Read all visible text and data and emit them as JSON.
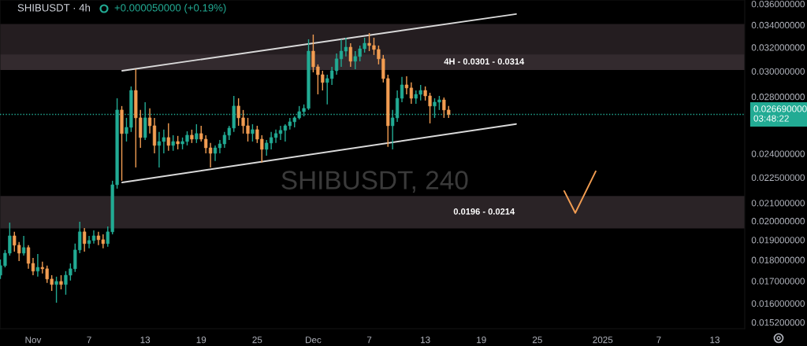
{
  "chart_data": {
    "type": "candlestick",
    "title": "SHIBUSDT · 4h",
    "subtitle": "+0.000050000 (+0.19%)",
    "x": [
      "2024-10-28T12:00",
      "2024-10-29T00:00",
      "2024-10-29T12:00",
      "2024-10-30T00:00",
      "2024-10-30T12:00",
      "2024-10-31T00:00",
      "2024-10-31T12:00",
      "2024-11-01T00:00",
      "2024-11-01T12:00",
      "2024-11-02T00:00",
      "2024-11-02T12:00",
      "2024-11-03T00:00",
      "2024-11-03T12:00",
      "2024-11-04T00:00",
      "2024-11-04T12:00",
      "2024-11-05T00:00",
      "2024-11-05T12:00",
      "2024-11-06T00:00",
      "2024-11-06T12:00",
      "2024-11-07T00:00",
      "2024-11-07T12:00",
      "2024-11-08T00:00",
      "2024-11-08T12:00",
      "2024-11-09T00:00",
      "2024-11-09T12:00",
      "2024-11-10T00:00",
      "2024-11-10T12:00",
      "2024-11-11T00:00",
      "2024-11-11T12:00",
      "2024-11-12T00:00",
      "2024-11-12T12:00",
      "2024-11-13T00:00",
      "2024-11-13T12:00",
      "2024-11-14T00:00",
      "2024-11-14T12:00",
      "2024-11-15T00:00",
      "2024-11-15T12:00",
      "2024-11-16T00:00",
      "2024-11-16T12:00",
      "2024-11-17T00:00",
      "2024-11-17T12:00",
      "2024-11-18T00:00",
      "2024-11-18T12:00",
      "2024-11-19T00:00",
      "2024-11-19T12:00",
      "2024-11-20T00:00",
      "2024-11-20T12:00",
      "2024-11-21T00:00",
      "2024-11-21T12:00",
      "2024-11-22T00:00",
      "2024-11-22T12:00",
      "2024-11-23T00:00",
      "2024-11-23T12:00",
      "2024-11-24T00:00",
      "2024-11-24T12:00",
      "2024-11-25T00:00",
      "2024-11-25T12:00",
      "2024-11-26T00:00",
      "2024-11-26T12:00",
      "2024-11-27T00:00",
      "2024-11-27T12:00",
      "2024-11-28T00:00",
      "2024-11-28T12:00",
      "2024-11-29T00:00",
      "2024-11-29T12:00",
      "2024-11-30T00:00",
      "2024-11-30T12:00",
      "2024-12-01T00:00",
      "2024-12-01T12:00",
      "2024-12-02T00:00",
      "2024-12-02T12:00",
      "2024-12-03T00:00",
      "2024-12-03T12:00",
      "2024-12-04T00:00",
      "2024-12-04T12:00",
      "2024-12-05T00:00",
      "2024-12-05T12:00",
      "2024-12-06T00:00",
      "2024-12-06T12:00",
      "2024-12-07T00:00",
      "2024-12-07T12:00",
      "2024-12-08T00:00",
      "2024-12-08T12:00",
      "2024-12-09T00:00",
      "2024-12-09T12:00",
      "2024-12-10T00:00",
      "2024-12-10T12:00",
      "2024-12-11T00:00",
      "2024-12-11T12:00",
      "2024-12-12T00:00",
      "2024-12-12T12:00",
      "2024-12-13T00:00",
      "2024-12-13T12:00",
      "2024-12-14T00:00",
      "2024-12-14T12:00",
      "2024-12-15T00:00",
      "2024-12-15T12:00"
    ],
    "ohlc": [
      [
        0.01727,
        0.01802,
        0.01709,
        0.01772
      ],
      [
        0.01772,
        0.01849,
        0.01764,
        0.01833
      ],
      [
        0.01833,
        0.01991,
        0.01821,
        0.01921
      ],
      [
        0.01921,
        0.01942,
        0.01841,
        0.01873
      ],
      [
        0.01873,
        0.01889,
        0.01794,
        0.01833
      ],
      [
        0.01833,
        0.01921,
        0.01821,
        0.01861
      ],
      [
        0.01861,
        0.01873,
        0.01757,
        0.01783
      ],
      [
        0.01783,
        0.0181,
        0.01727,
        0.01746
      ],
      [
        0.01746,
        0.01829,
        0.0172,
        0.01764
      ],
      [
        0.01764,
        0.01791,
        0.01735,
        0.01757
      ],
      [
        0.01757,
        0.01772,
        0.01691,
        0.01709
      ],
      [
        0.01709,
        0.01727,
        0.01655,
        0.01684
      ],
      [
        0.01684,
        0.0172,
        0.01603,
        0.01698
      ],
      [
        0.01698,
        0.01727,
        0.01662,
        0.01684
      ],
      [
        0.01684,
        0.01746,
        0.01638,
        0.01727
      ],
      [
        0.01727,
        0.01783,
        0.01702,
        0.01757
      ],
      [
        0.01757,
        0.01881,
        0.01742,
        0.01849
      ],
      [
        0.01849,
        0.01996,
        0.01833,
        0.01942
      ],
      [
        0.01942,
        0.01962,
        0.01841,
        0.01881
      ],
      [
        0.01881,
        0.01921,
        0.01857,
        0.01897
      ],
      [
        0.01897,
        0.0195,
        0.01881,
        0.01921
      ],
      [
        0.01921,
        0.01942,
        0.01873,
        0.01901
      ],
      [
        0.01901,
        0.01929,
        0.01857,
        0.01881
      ],
      [
        0.01881,
        0.0197,
        0.01865,
        0.01942
      ],
      [
        0.01942,
        0.0223,
        0.01929,
        0.02206
      ],
      [
        0.02206,
        0.02788,
        0.02183,
        0.02701
      ],
      [
        0.02701,
        0.0273,
        0.0223,
        0.02534
      ],
      [
        0.02534,
        0.02644,
        0.0248,
        0.02577
      ],
      [
        0.02577,
        0.02879,
        0.02545,
        0.02848
      ],
      [
        0.02848,
        0.03017,
        0.02312,
        0.02644
      ],
      [
        0.02644,
        0.02701,
        0.02438,
        0.02507
      ],
      [
        0.02507,
        0.02759,
        0.02491,
        0.02644
      ],
      [
        0.02644,
        0.02713,
        0.02534,
        0.02588
      ],
      [
        0.02588,
        0.02644,
        0.02402,
        0.02454
      ],
      [
        0.02454,
        0.02545,
        0.02312,
        0.0248
      ],
      [
        0.0248,
        0.02561,
        0.02402,
        0.02507
      ],
      [
        0.02507,
        0.02605,
        0.02418,
        0.02454
      ],
      [
        0.02454,
        0.02523,
        0.02418,
        0.0248
      ],
      [
        0.0248,
        0.02518,
        0.02428,
        0.02464
      ],
      [
        0.02464,
        0.02507,
        0.02428,
        0.0248
      ],
      [
        0.0248,
        0.0255,
        0.02454,
        0.02523
      ],
      [
        0.02523,
        0.02561,
        0.0247,
        0.02496
      ],
      [
        0.02496,
        0.02599,
        0.0247,
        0.02534
      ],
      [
        0.02534,
        0.02588,
        0.0248,
        0.02496
      ],
      [
        0.02496,
        0.02523,
        0.02402,
        0.02438
      ],
      [
        0.02438,
        0.0247,
        0.02312,
        0.02402
      ],
      [
        0.02402,
        0.02454,
        0.02352,
        0.02438
      ],
      [
        0.02438,
        0.02491,
        0.02402,
        0.02464
      ],
      [
        0.02464,
        0.02545,
        0.02438,
        0.02523
      ],
      [
        0.02523,
        0.02588,
        0.02491,
        0.02572
      ],
      [
        0.02572,
        0.02806,
        0.02545,
        0.0273
      ],
      [
        0.0273,
        0.02788,
        0.02588,
        0.02644
      ],
      [
        0.02644,
        0.02701,
        0.02534,
        0.02588
      ],
      [
        0.02588,
        0.02644,
        0.0248,
        0.02534
      ],
      [
        0.02534,
        0.02599,
        0.0248,
        0.02561
      ],
      [
        0.02561,
        0.02588,
        0.0247,
        0.02496
      ],
      [
        0.02496,
        0.02523,
        0.02342,
        0.02428
      ],
      [
        0.02428,
        0.02491,
        0.02387,
        0.0247
      ],
      [
        0.0247,
        0.02545,
        0.02428,
        0.02507
      ],
      [
        0.02507,
        0.02561,
        0.0247,
        0.02534
      ],
      [
        0.02534,
        0.02588,
        0.02491,
        0.02556
      ],
      [
        0.02556,
        0.02599,
        0.0248,
        0.02588
      ],
      [
        0.02588,
        0.02644,
        0.02561,
        0.02616
      ],
      [
        0.02616,
        0.02655,
        0.02577,
        0.02644
      ],
      [
        0.02644,
        0.0273,
        0.02633,
        0.02689
      ],
      [
        0.02689,
        0.02742,
        0.02655,
        0.02713
      ],
      [
        0.02713,
        0.03271,
        0.02701,
        0.03168
      ],
      [
        0.03168,
        0.03313,
        0.02991,
        0.03036
      ],
      [
        0.03036,
        0.03056,
        0.02818,
        0.02972
      ],
      [
        0.02972,
        0.03004,
        0.02848,
        0.0291
      ],
      [
        0.0291,
        0.02972,
        0.02742,
        0.02941
      ],
      [
        0.02941,
        0.03036,
        0.02891,
        0.03004
      ],
      [
        0.03004,
        0.03148,
        0.02972,
        0.03102
      ],
      [
        0.03102,
        0.03271,
        0.03036,
        0.03168
      ],
      [
        0.03168,
        0.03285,
        0.03122,
        0.03202
      ],
      [
        0.03202,
        0.03236,
        0.03036,
        0.03082
      ],
      [
        0.03082,
        0.03168,
        0.03017,
        0.03122
      ],
      [
        0.03122,
        0.03216,
        0.03082,
        0.03188
      ],
      [
        0.03188,
        0.03285,
        0.03155,
        0.03236
      ],
      [
        0.03236,
        0.03327,
        0.03168,
        0.03216
      ],
      [
        0.03216,
        0.03285,
        0.03135,
        0.03182
      ],
      [
        0.03182,
        0.03216,
        0.03056,
        0.03102
      ],
      [
        0.03102,
        0.03135,
        0.0291,
        0.02941
      ],
      [
        0.02941,
        0.02972,
        0.02444,
        0.02588
      ],
      [
        0.02588,
        0.02701,
        0.02428,
        0.02644
      ],
      [
        0.02644,
        0.02848,
        0.02616,
        0.02788
      ],
      [
        0.02788,
        0.02954,
        0.02759,
        0.02891
      ],
      [
        0.02891,
        0.02959,
        0.02818,
        0.02867
      ],
      [
        0.02867,
        0.0291,
        0.02747,
        0.02788
      ],
      [
        0.02788,
        0.02848,
        0.02747,
        0.02818
      ],
      [
        0.02818,
        0.02891,
        0.02771,
        0.02848
      ],
      [
        0.02848,
        0.02879,
        0.02771,
        0.02806
      ],
      [
        0.02806,
        0.0283,
        0.02605,
        0.0273
      ],
      [
        0.0273,
        0.02788,
        0.02644,
        0.02759
      ],
      [
        0.02759,
        0.02806,
        0.02701,
        0.02776
      ],
      [
        0.02776,
        0.02794,
        0.02644,
        0.02701
      ],
      [
        0.02701,
        0.0273,
        0.02644,
        0.02669
      ]
    ],
    "colors": [
      "#22ab94",
      "#22ab94",
      "#22ab94",
      "#f29d52",
      "#f29d52",
      "#22ab94",
      "#f29d52",
      "#f29d52",
      "#22ab94",
      "#f29d52",
      "#f29d52",
      "#f29d52",
      "#22ab94",
      "#f29d52",
      "#22ab94",
      "#22ab94",
      "#22ab94",
      "#22ab94",
      "#f29d52",
      "#22ab94",
      "#22ab94",
      "#f29d52",
      "#f29d52",
      "#22ab94",
      "#22ab94",
      "#22ab94",
      "#f29d52",
      "#22ab94",
      "#22ab94",
      "#f29d52",
      "#f29d52",
      "#22ab94",
      "#f29d52",
      "#f29d52",
      "#22ab94",
      "#22ab94",
      "#f29d52",
      "#22ab94",
      "#f29d52",
      "#22ab94",
      "#22ab94",
      "#f29d52",
      "#22ab94",
      "#f29d52",
      "#f29d52",
      "#f29d52",
      "#22ab94",
      "#22ab94",
      "#22ab94",
      "#22ab94",
      "#22ab94",
      "#f29d52",
      "#f29d52",
      "#f29d52",
      "#22ab94",
      "#f29d52",
      "#f29d52",
      "#22ab94",
      "#22ab94",
      "#22ab94",
      "#22ab94",
      "#22ab94",
      "#22ab94",
      "#22ab94",
      "#22ab94",
      "#22ab94",
      "#22ab94",
      "#f29d52",
      "#f29d52",
      "#f29d52",
      "#22ab94",
      "#22ab94",
      "#22ab94",
      "#22ab94",
      "#22ab94",
      "#f29d52",
      "#22ab94",
      "#22ab94",
      "#22ab94",
      "#f29d52",
      "#f29d52",
      "#f29d52",
      "#f29d52",
      "#f29d52",
      "#22ab94",
      "#22ab94",
      "#22ab94",
      "#f29d52",
      "#f29d52",
      "#22ab94",
      "#22ab94",
      "#f29d52",
      "#f29d52",
      "#22ab94",
      "#22ab94",
      "#f29d52",
      "#f29d52"
    ],
    "series": [
      {
        "type": "line",
        "color": "#d9d9d9",
        "x": [
          "2024-11-10T13:00",
          "2024-12-22T17:30"
        ],
        "values": [
          0.03004,
          0.03502
        ]
      },
      {
        "type": "line",
        "color": "#d9d9d9",
        "x": [
          "2024-11-10T13:00",
          "2024-12-22T17:30"
        ],
        "values": [
          0.0222,
          0.026
        ]
      },
      {
        "type": "line",
        "color": "#f29d52",
        "x": [
          "2024-12-27T21:00",
          "2024-12-29T01:30",
          "2024-12-31T06:00"
        ],
        "values": [
          0.02169,
          0.02044,
          0.02288
        ]
      }
    ],
    "bands": [
      {
        "axis": "y",
        "from": 0.0308,
        "to": 0.0341,
        "color": "#241d20"
      },
      {
        "axis": "y",
        "from": 0.0301,
        "to": 0.0314,
        "label": "4H - 0.0301 - 0.0314",
        "color": "#332a2e"
      },
      {
        "axis": "y",
        "from": 0.0196,
        "to": 0.0214,
        "label": "0.0196 - 0.0214",
        "color": "#2a2326"
      }
    ],
    "ref_lines": [
      {
        "axis": "y",
        "value": 0.02669,
        "label": "0.026690000\n03:48:22",
        "color": "#22ab94",
        "line_style": "dotted"
      }
    ],
    "annotations": [
      "SHIBUSDT, 240"
    ],
    "log": "y",
    "xlim": [
      "2024-10-28T11:00",
      "2025-01-16T05:00"
    ],
    "ylim": [
      0.01494,
      0.03638
    ],
    "xticks": [
      {
        "value": "2024-11-01",
        "label": "Nov"
      },
      {
        "value": "2024-11-07",
        "label": "7"
      },
      {
        "value": "2024-11-13",
        "label": "13"
      },
      {
        "value": "2024-11-19",
        "label": "19"
      },
      {
        "value": "2024-11-25",
        "label": "25"
      },
      {
        "value": "2024-12-01",
        "label": "Dec"
      },
      {
        "value": "2024-12-07",
        "label": "7"
      },
      {
        "value": "2024-12-13",
        "label": "13"
      },
      {
        "value": "2024-12-19",
        "label": "19"
      },
      {
        "value": "2024-12-25",
        "label": "25"
      },
      {
        "value": "2025-01-01",
        "label": "2025"
      },
      {
        "value": "2025-01-07",
        "label": "7"
      },
      {
        "value": "2025-01-13",
        "label": "13"
      }
    ],
    "yticks": [
      {
        "value": 0.0152,
        "label": "0.015200000"
      },
      {
        "value": 0.016,
        "label": "0.016000000"
      },
      {
        "value": 0.017,
        "label": "0.017000000"
      },
      {
        "value": 0.018,
        "label": "0.018000000"
      },
      {
        "value": 0.019,
        "label": "0.019000000"
      },
      {
        "value": 0.02,
        "label": "0.020000000"
      },
      {
        "value": 0.021,
        "label": "0.021000000"
      },
      {
        "value": 0.0225,
        "label": "0.022500000"
      },
      {
        "value": 0.024,
        "label": "0.024000000"
      },
      {
        "value": 0.028,
        "label": "0.028000000"
      },
      {
        "value": 0.03,
        "label": "0.030000000"
      },
      {
        "value": 0.032,
        "label": "0.032000000"
      },
      {
        "value": 0.034,
        "label": "0.034000000"
      },
      {
        "value": 0.036,
        "label": "0.036000000"
      }
    ]
  }
}
